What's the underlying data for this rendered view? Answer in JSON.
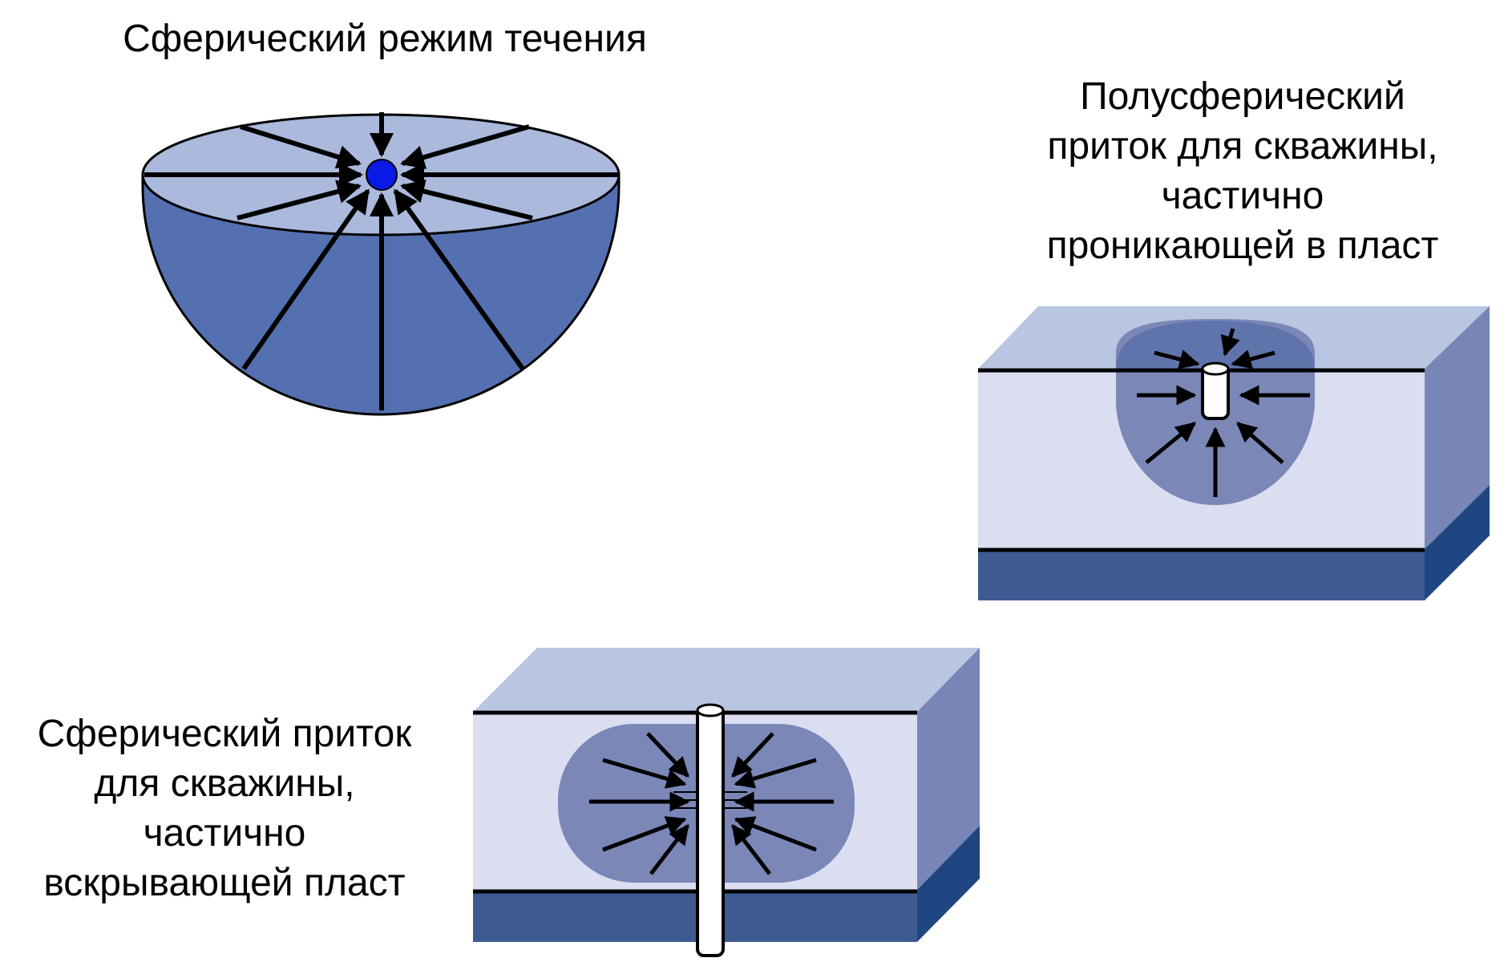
{
  "captions": {
    "spherical_mode": [
      "Сферический режим течения"
    ],
    "hemispherical_inflow": [
      "Полусферический",
      "приток для скважины,",
      "частично",
      "проникающей в пласт"
    ],
    "spherical_inflow": [
      "Сферический приток",
      "для скважины,",
      "частично",
      "вскрывающей пласт"
    ]
  },
  "colors": {
    "hemisphere_body": "#5470b0",
    "hemisphere_top": "#aab9dc",
    "wellpoint": "#0a1ae6",
    "block_top": "#b9c6e2",
    "block_front": "#dadef0",
    "block_side": "#7786b6",
    "block_bottom_front": "#3e5b91",
    "block_bottom_side": "#1f4680",
    "flow_zone": "#7a87b7",
    "flow_zone_dark": "#5f74aa",
    "arrow": "#000000"
  }
}
